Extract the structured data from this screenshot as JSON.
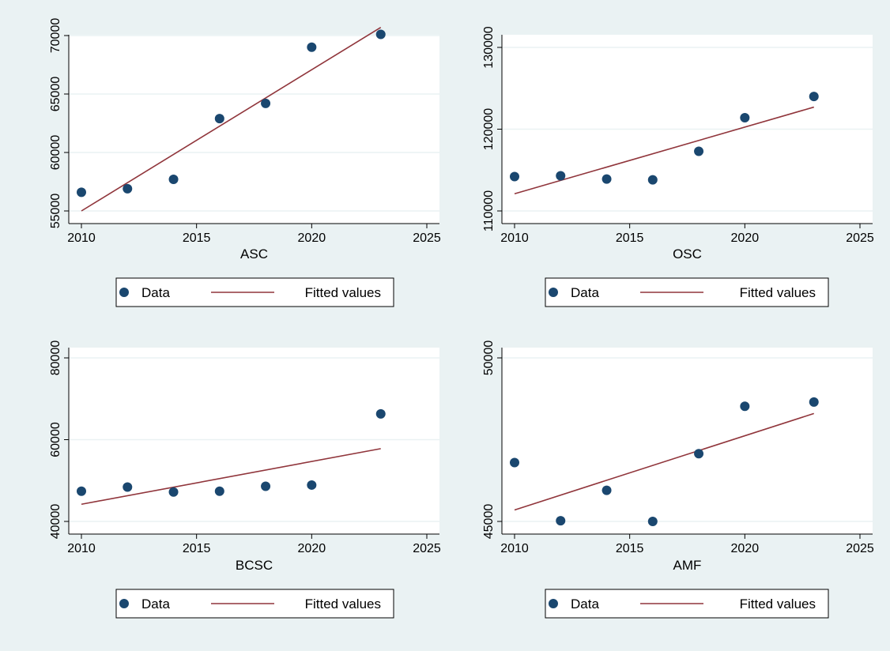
{
  "colors": {
    "outer_background": "#eaf2f3",
    "plot_background": "#ffffff",
    "grid": "#eaf2f3",
    "marker": "#1a476f",
    "fit_line": "#90353b",
    "axis": "#000000"
  },
  "legend": {
    "data_label": "Data",
    "fit_label": "Fitted values"
  },
  "chart_data": [
    {
      "type": "scatter",
      "xlabel": "ASC",
      "ylabel": "",
      "xlim": [
        2010,
        2025
      ],
      "ylim": [
        55000,
        70000
      ],
      "xticks": [
        2010,
        2015,
        2020,
        2025
      ],
      "yticks": [
        55000,
        60000,
        65000,
        70000
      ],
      "grid": true,
      "legend_position": "bottom",
      "series": [
        {
          "name": "Data",
          "type": "scatter",
          "x": [
            2010,
            2012,
            2014,
            2016,
            2018,
            2020,
            2023
          ],
          "y": [
            56600,
            56900,
            57700,
            62900,
            64200,
            69000,
            70100
          ]
        },
        {
          "name": "Fitted values",
          "type": "line",
          "x": [
            2010,
            2023
          ],
          "y": [
            55000,
            70700
          ]
        }
      ]
    },
    {
      "type": "scatter",
      "xlabel": "OSC",
      "ylabel": "",
      "xlim": [
        2010,
        2025
      ],
      "ylim": [
        110000,
        130000
      ],
      "xticks": [
        2010,
        2015,
        2020,
        2025
      ],
      "yticks": [
        110000,
        120000,
        130000
      ],
      "grid": true,
      "legend_position": "bottom",
      "series": [
        {
          "name": "Data",
          "type": "scatter",
          "x": [
            2010,
            2012,
            2014,
            2016,
            2018,
            2020,
            2023
          ],
          "y": [
            114200,
            114300,
            113900,
            113800,
            117300,
            121400,
            124000
          ]
        },
        {
          "name": "Fitted values",
          "type": "line",
          "x": [
            2010,
            2023
          ],
          "y": [
            112100,
            122700
          ]
        }
      ]
    },
    {
      "type": "scatter",
      "xlabel": "BCSC",
      "ylabel": "",
      "xlim": [
        2010,
        2025
      ],
      "ylim": [
        40000,
        80000
      ],
      "xticks": [
        2010,
        2015,
        2020,
        2025
      ],
      "yticks": [
        40000,
        60000,
        80000
      ],
      "grid": true,
      "legend_position": "bottom",
      "series": [
        {
          "name": "Data",
          "type": "scatter",
          "x": [
            2010,
            2012,
            2014,
            2016,
            2018,
            2020,
            2023
          ],
          "y": [
            47400,
            48400,
            47200,
            47400,
            48600,
            48900,
            66300
          ]
        },
        {
          "name": "Fitted values",
          "type": "line",
          "x": [
            2010,
            2023
          ],
          "y": [
            44200,
            57800
          ]
        }
      ]
    },
    {
      "type": "scatter",
      "xlabel": "AMF",
      "ylabel": "",
      "xlim": [
        2010,
        2025
      ],
      "ylim": [
        45000,
        50000
      ],
      "xticks": [
        2010,
        2015,
        2020,
        2025
      ],
      "yticks": [
        45000,
        50000
      ],
      "grid": true,
      "legend_position": "bottom",
      "series": [
        {
          "name": "Data",
          "type": "scatter",
          "x": [
            2010,
            2012,
            2014,
            2016,
            2018,
            2020,
            2023
          ],
          "y": [
            46800,
            45020,
            45950,
            45000,
            47070,
            48520,
            48650
          ]
        },
        {
          "name": "Fitted values",
          "type": "line",
          "x": [
            2010,
            2023
          ],
          "y": [
            45350,
            48300
          ]
        }
      ]
    }
  ]
}
